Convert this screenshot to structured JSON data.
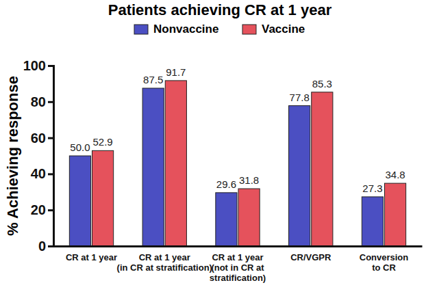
{
  "chart_data": {
    "type": "bar",
    "title": "Patients achieving CR at 1 year",
    "y_label": "% Achieving response",
    "categories": [
      "CR at 1 year",
      "CR at 1 year\n(in CR at stratification)",
      "CR at 1 year\n(not in CR at\nstratification)",
      "CR/VGPR",
      "Conversion\nto CR"
    ],
    "series": [
      {
        "name": "Nonvaccine",
        "color": "#4b4fc2",
        "values": [
          50.0,
          87.5,
          29.6,
          77.8,
          27.3
        ],
        "value_labels": [
          "50.0",
          "87.5",
          "29.6",
          "77.8",
          "27.3"
        ]
      },
      {
        "name": "Vaccine",
        "color": "#e5525c",
        "values": [
          52.9,
          91.7,
          31.8,
          85.3,
          34.8
        ],
        "value_labels": [
          "52.9",
          "91.7",
          "31.8",
          "85.3",
          "34.8"
        ]
      }
    ],
    "ylim": [
      0,
      100
    ],
    "yticks": [
      0,
      20,
      40,
      60,
      80,
      100
    ],
    "grid": false,
    "legend": "top",
    "data_labels": true
  }
}
